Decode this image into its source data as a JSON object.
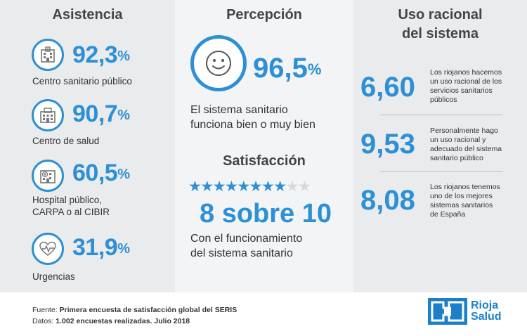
{
  "asistencia": {
    "title": "Asistencia",
    "items": [
      {
        "value": "92,3",
        "unit": "%",
        "label": "Centro sanitario público",
        "icon": "hospital-building-icon"
      },
      {
        "value": "90,7",
        "unit": "%",
        "label": "Centro de salud",
        "icon": "health-center-icon"
      },
      {
        "value": "60,5",
        "unit": "%",
        "label_line1": "Hospital público,",
        "label_line2": "CARPA o al CIBIR",
        "icon": "hospital-icon"
      },
      {
        "value": "31,9",
        "unit": "%",
        "label": "Urgencias",
        "icon": "heartbeat-icon"
      }
    ]
  },
  "percepcion": {
    "title": "Percepción",
    "value": "96,5",
    "unit": "%",
    "text_line1": "El sistema sanitario",
    "text_line2": "funciona bien o muy bien",
    "icon": "smiley-icon"
  },
  "satisfaccion": {
    "title": "Satisfacción",
    "rating": 8,
    "max": 10,
    "value_text": "8 sobre 10",
    "text_line1": "Con el funcionamiento",
    "text_line2": "del sistema sanitario"
  },
  "uso": {
    "title_line1": "Uso racional",
    "title_line2": "del sistema",
    "items": [
      {
        "value": "6,60",
        "text_line1": "Los riojanos hacemos",
        "text_line2": "un uso racional de los",
        "text_line3": "servicios sanitarios",
        "text_line4": "públicos"
      },
      {
        "value": "9,53",
        "text_line1": "Personalmente hago",
        "text_line2": "un uso racional y",
        "text_line3": "adecuado del sistema",
        "text_line4": "sanitario público"
      },
      {
        "value": "8,08",
        "text_line1": "Los riojanos tenemos",
        "text_line2": "uno de los mejores",
        "text_line3": "sistemas sanitarios",
        "text_line4": "de España"
      }
    ]
  },
  "footer": {
    "source_label": "Fuente:",
    "source_text": "Primera encuesta de satisfacción global del SERIS",
    "data_label": "Datos:",
    "data_text": "1.002 encuestas realizadas. Julio 2018"
  },
  "logo": {
    "line1": "Rioja",
    "line2": "Salud",
    "color": "#1c7fc9"
  },
  "colors": {
    "accent": "#2d8fd5",
    "panel": "#e9ebed",
    "panel_mid": "#f3f4f5"
  }
}
